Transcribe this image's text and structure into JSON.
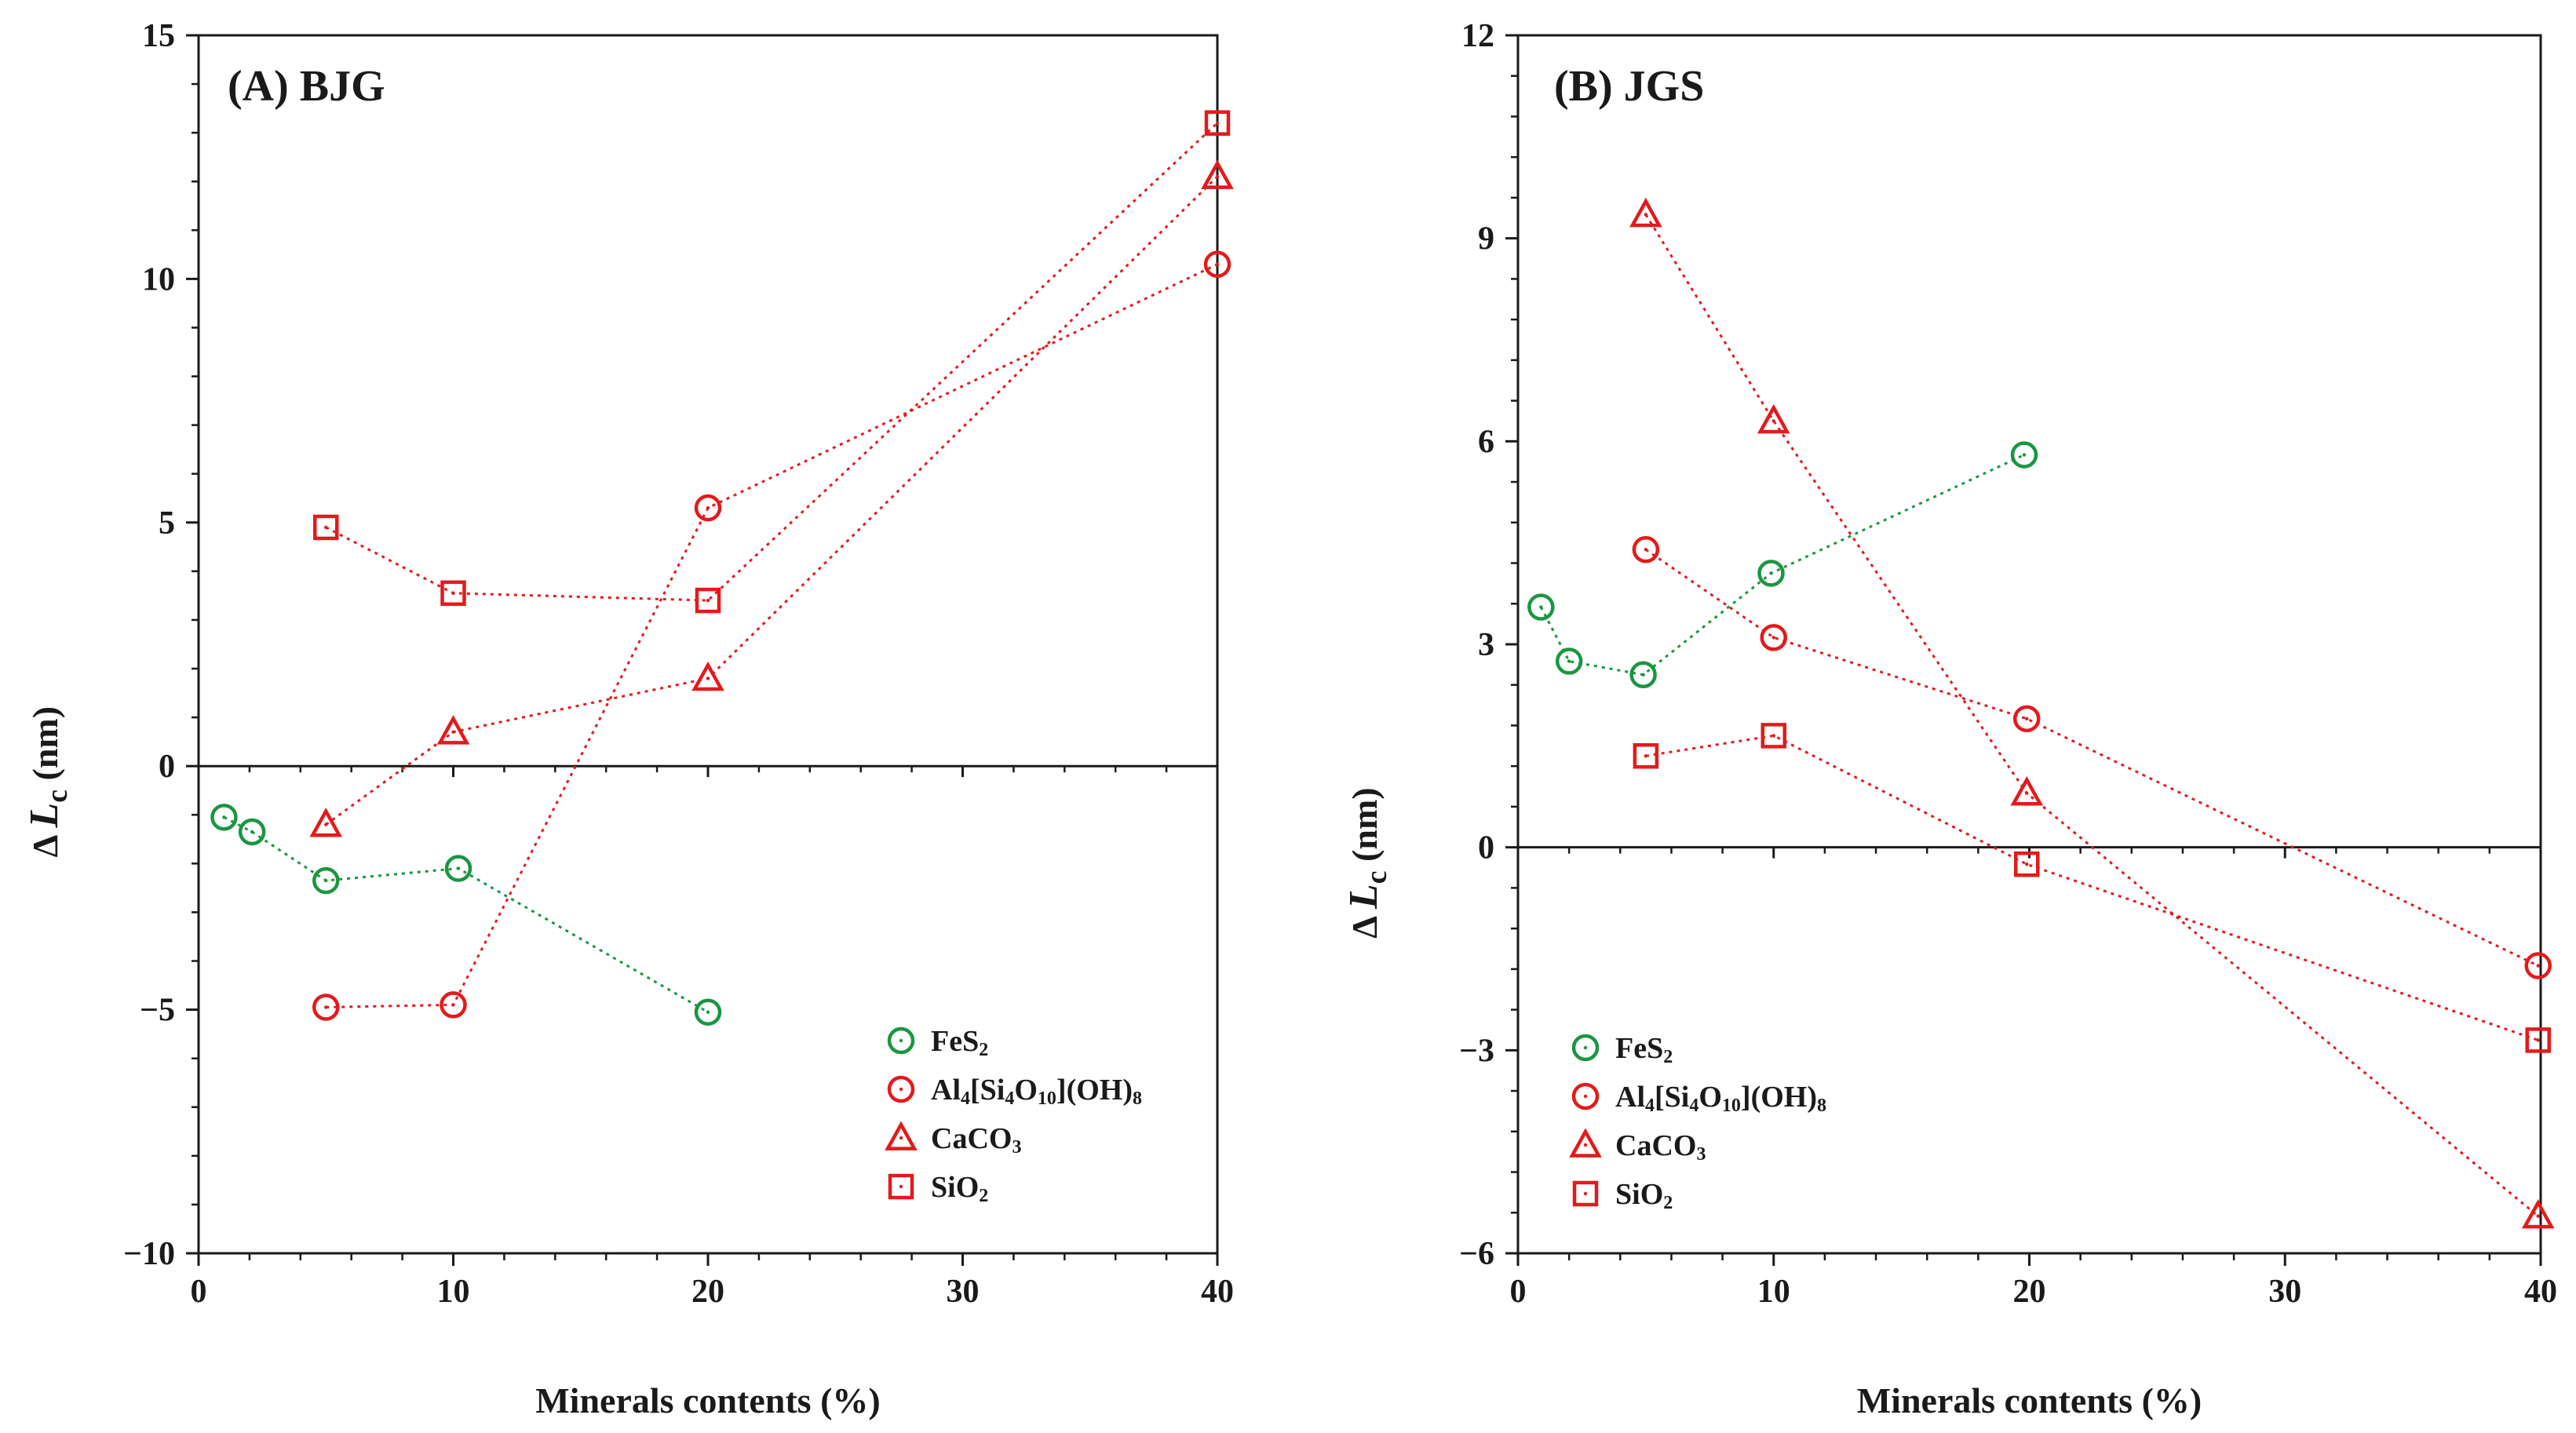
{
  "chart_data": [
    {
      "type": "line",
      "title": "(A) BJG",
      "xlabel": "Minerals contents (%)",
      "ylabel_prefix": "Δ",
      "ylabel_var": "L",
      "ylabel_sub": "c",
      "ylabel_unit": "(nm)",
      "xlim": [
        0,
        40
      ],
      "ylim": [
        -10,
        15
      ],
      "xticks": [
        0,
        10,
        20,
        30,
        40
      ],
      "yticks": [
        -10,
        -5,
        0,
        5,
        10,
        15
      ],
      "ytick_labels": [
        "−10",
        "−5",
        "0",
        "5",
        "10",
        "15"
      ],
      "xtick_labels": [
        "0",
        "10",
        "20",
        "30",
        "40"
      ],
      "legend_position": "lower-right",
      "series": [
        {
          "name": "FeS2",
          "marker": "circle",
          "color": "#1a9641",
          "x": [
            1,
            2.1,
            5,
            10.2,
            20
          ],
          "y": [
            -1.05,
            -1.35,
            -2.35,
            -2.1,
            -5.05
          ]
        },
        {
          "name": "Al4[Si4O10](OH)8",
          "marker": "circle",
          "color": "#e31a1c",
          "x": [
            5,
            10,
            20,
            40
          ],
          "y": [
            -4.95,
            -4.9,
            5.3,
            10.3
          ]
        },
        {
          "name": "CaCO3",
          "marker": "triangle",
          "color": "#e31a1c",
          "x": [
            5,
            10,
            20,
            40
          ],
          "y": [
            -1.2,
            0.7,
            1.8,
            12.1
          ]
        },
        {
          "name": "SiO2",
          "marker": "square",
          "color": "#e31a1c",
          "x": [
            5,
            10,
            20,
            40
          ],
          "y": [
            4.9,
            3.55,
            3.4,
            13.2
          ]
        }
      ]
    },
    {
      "type": "line",
      "title": "(B) JGS",
      "xlabel": "Minerals contents (%)",
      "ylabel_prefix": "Δ",
      "ylabel_var": "L",
      "ylabel_sub": "c",
      "ylabel_unit": "(nm)",
      "xlim": [
        0,
        40
      ],
      "ylim": [
        -6,
        12
      ],
      "xticks": [
        0,
        10,
        20,
        30,
        40
      ],
      "yticks": [
        -6,
        -3,
        0,
        3,
        6,
        9,
        12
      ],
      "ytick_labels": [
        "−6",
        "−3",
        "0",
        "3",
        "6",
        "9",
        "12"
      ],
      "xtick_labels": [
        "0",
        "10",
        "20",
        "30",
        "40"
      ],
      "legend_position": "lower-left",
      "series": [
        {
          "name": "FeS2",
          "marker": "circle",
          "color": "#1a9641",
          "x": [
            0.9,
            2,
            4.9,
            9.9,
            19.8
          ],
          "y": [
            3.55,
            2.75,
            2.55,
            4.05,
            5.8
          ]
        },
        {
          "name": "Al4[Si4O10](OH)8",
          "marker": "circle",
          "color": "#e31a1c",
          "x": [
            5,
            10,
            19.9,
            39.9
          ],
          "y": [
            4.4,
            3.1,
            1.9,
            -1.75
          ]
        },
        {
          "name": "CaCO3",
          "marker": "triangle",
          "color": "#e31a1c",
          "x": [
            5,
            10,
            19.9,
            39.9
          ],
          "y": [
            9.35,
            6.3,
            0.8,
            -5.45
          ]
        },
        {
          "name": "SiO2",
          "marker": "square",
          "color": "#e31a1c",
          "x": [
            5,
            10,
            19.9,
            39.9
          ],
          "y": [
            1.35,
            1.65,
            -0.25,
            -2.85
          ]
        }
      ]
    }
  ],
  "legend_labels": [
    {
      "base": "FeS",
      "parts": [
        [
          "FeS",
          ""
        ],
        [
          "2",
          "sub"
        ]
      ]
    },
    {
      "base": "Al4[Si4O10](OH)8",
      "parts": [
        [
          "Al",
          ""
        ],
        [
          "4",
          "sub"
        ],
        [
          "[Si",
          ""
        ],
        [
          "4",
          "sub"
        ],
        [
          "O",
          ""
        ],
        [
          "10",
          "sub"
        ],
        [
          "](OH)",
          ""
        ],
        [
          "8",
          "sub"
        ]
      ]
    },
    {
      "base": "CaCO3",
      "parts": [
        [
          "CaCO",
          ""
        ],
        [
          "3",
          "sub"
        ]
      ]
    },
    {
      "base": "SiO2",
      "parts": [
        [
          "SiO",
          ""
        ],
        [
          "2",
          "sub"
        ]
      ]
    }
  ]
}
